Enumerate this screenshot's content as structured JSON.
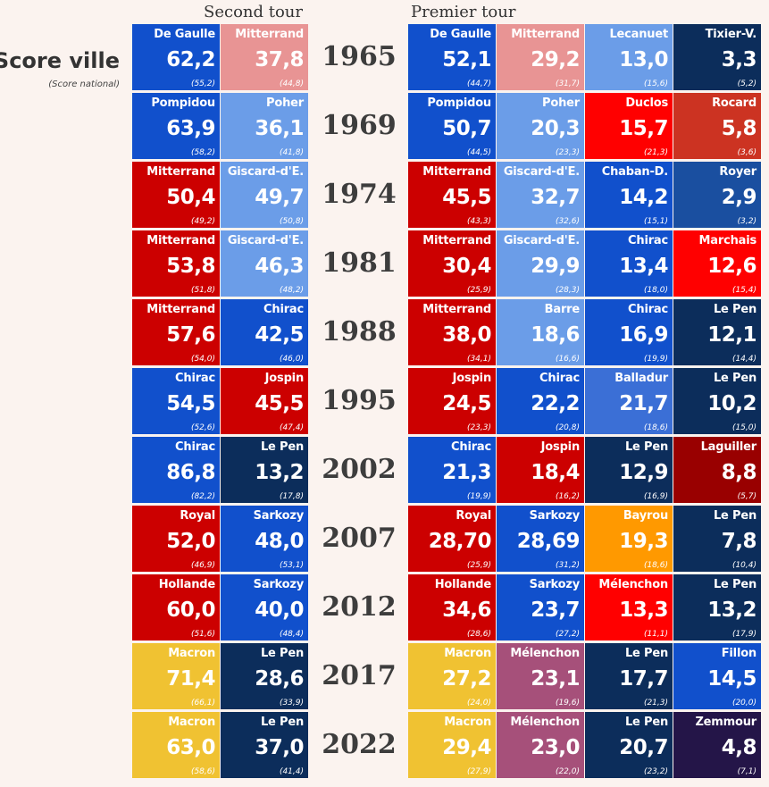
{
  "headers": {
    "second": "Second tour",
    "first": "Premier tour"
  },
  "legend": {
    "title": "Score ville",
    "subtitle": "(Score national)"
  },
  "colors": {
    "degaulle": "#1150cc",
    "pompidou": "#1150cc",
    "chirac": "#1150cc",
    "sarkozy": "#1150cc",
    "fillon": "#1150cc",
    "balladur": "#3b6fd6",
    "poher": "#6b9de8",
    "giscard": "#6b9de8",
    "lecanuet": "#6b9de8",
    "barre": "#6b9de8",
    "mitterrand_left": "#e89494",
    "socialist": "#cc0000",
    "communist": "#ff0000",
    "rocard": "#cc3322",
    "laguiller": "#990000",
    "tixier": "#0c2d5b",
    "lepen": "#0c2d5b",
    "chaband": "#1150cc",
    "royer": "#1a4fa0",
    "bayrou": "#ff9900",
    "macron": "#f0c232",
    "melenchon": "#a6507a",
    "zemmour": "#241548"
  },
  "chart_data": {
    "type": "table",
    "title": "Score ville",
    "subtitle": "(Score national)",
    "column_groups": [
      "Second tour",
      "Premier tour"
    ],
    "rows": [
      {
        "year": "1965",
        "second": [
          {
            "name": "De Gaulle",
            "score": "62,2",
            "national": "(55,2)",
            "color": "#1150cc"
          },
          {
            "name": "Mitterrand",
            "score": "37,8",
            "national": "(44,8)",
            "color": "#e89494"
          }
        ],
        "first": [
          {
            "name": "De Gaulle",
            "score": "52,1",
            "national": "(44,7)",
            "color": "#1150cc"
          },
          {
            "name": "Mitterrand",
            "score": "29,2",
            "national": "(31,7)",
            "color": "#e89494"
          },
          {
            "name": "Lecanuet",
            "score": "13,0",
            "national": "(15,6)",
            "color": "#6b9de8"
          },
          {
            "name": "Tixier-V.",
            "score": "3,3",
            "national": "(5,2)",
            "color": "#0c2d5b"
          }
        ]
      },
      {
        "year": "1969",
        "second": [
          {
            "name": "Pompidou",
            "score": "63,9",
            "national": "(58,2)",
            "color": "#1150cc"
          },
          {
            "name": "Poher",
            "score": "36,1",
            "national": "(41,8)",
            "color": "#6b9de8"
          }
        ],
        "first": [
          {
            "name": "Pompidou",
            "score": "50,7",
            "national": "(44,5)",
            "color": "#1150cc"
          },
          {
            "name": "Poher",
            "score": "20,3",
            "national": "(23,3)",
            "color": "#6b9de8"
          },
          {
            "name": "Duclos",
            "score": "15,7",
            "national": "(21,3)",
            "color": "#ff0000"
          },
          {
            "name": "Rocard",
            "score": "5,8",
            "national": "(3,6)",
            "color": "#cc3322"
          }
        ]
      },
      {
        "year": "1974",
        "second": [
          {
            "name": "Mitterrand",
            "score": "50,4",
            "national": "(49,2)",
            "color": "#cc0000"
          },
          {
            "name": "Giscard-d'E.",
            "score": "49,7",
            "national": "(50,8)",
            "color": "#6b9de8"
          }
        ],
        "first": [
          {
            "name": "Mitterrand",
            "score": "45,5",
            "national": "(43,3)",
            "color": "#cc0000"
          },
          {
            "name": "Giscard-d'E.",
            "score": "32,7",
            "national": "(32,6)",
            "color": "#6b9de8"
          },
          {
            "name": "Chaban-D.",
            "score": "14,2",
            "national": "(15,1)",
            "color": "#1150cc"
          },
          {
            "name": "Royer",
            "score": "2,9",
            "national": "(3,2)",
            "color": "#1a4fa0"
          }
        ]
      },
      {
        "year": "1981",
        "second": [
          {
            "name": "Mitterrand",
            "score": "53,8",
            "national": "(51,8)",
            "color": "#cc0000"
          },
          {
            "name": "Giscard-d'E.",
            "score": "46,3",
            "national": "(48,2)",
            "color": "#6b9de8"
          }
        ],
        "first": [
          {
            "name": "Mitterrand",
            "score": "30,4",
            "national": "(25,9)",
            "color": "#cc0000"
          },
          {
            "name": "Giscard-d'E.",
            "score": "29,9",
            "national": "(28,3)",
            "color": "#6b9de8"
          },
          {
            "name": "Chirac",
            "score": "13,4",
            "national": "(18,0)",
            "color": "#1150cc"
          },
          {
            "name": "Marchais",
            "score": "12,6",
            "national": "(15,4)",
            "color": "#ff0000"
          }
        ]
      },
      {
        "year": "1988",
        "second": [
          {
            "name": "Mitterrand",
            "score": "57,6",
            "national": "(54,0)",
            "color": "#cc0000"
          },
          {
            "name": "Chirac",
            "score": "42,5",
            "national": "(46,0)",
            "color": "#1150cc"
          }
        ],
        "first": [
          {
            "name": "Mitterrand",
            "score": "38,0",
            "national": "(34,1)",
            "color": "#cc0000"
          },
          {
            "name": "Barre",
            "score": "18,6",
            "national": "(16,6)",
            "color": "#6b9de8"
          },
          {
            "name": "Chirac",
            "score": "16,9",
            "national": "(19,9)",
            "color": "#1150cc"
          },
          {
            "name": "Le Pen",
            "score": "12,1",
            "national": "(14,4)",
            "color": "#0c2d5b"
          }
        ]
      },
      {
        "year": "1995",
        "second": [
          {
            "name": "Chirac",
            "score": "54,5",
            "national": "(52,6)",
            "color": "#1150cc"
          },
          {
            "name": "Jospin",
            "score": "45,5",
            "national": "(47,4)",
            "color": "#cc0000"
          }
        ],
        "first": [
          {
            "name": "Jospin",
            "score": "24,5",
            "national": "(23,3)",
            "color": "#cc0000"
          },
          {
            "name": "Chirac",
            "score": "22,2",
            "national": "(20,8)",
            "color": "#1150cc"
          },
          {
            "name": "Balladur",
            "score": "21,7",
            "national": "(18,6)",
            "color": "#3b6fd6"
          },
          {
            "name": "Le Pen",
            "score": "10,2",
            "national": "(15,0)",
            "color": "#0c2d5b"
          }
        ]
      },
      {
        "year": "2002",
        "second": [
          {
            "name": "Chirac",
            "score": "86,8",
            "national": "(82,2)",
            "color": "#1150cc"
          },
          {
            "name": "Le Pen",
            "score": "13,2",
            "national": "(17,8)",
            "color": "#0c2d5b"
          }
        ],
        "first": [
          {
            "name": "Chirac",
            "score": "21,3",
            "national": "(19,9)",
            "color": "#1150cc"
          },
          {
            "name": "Jospin",
            "score": "18,4",
            "national": "(16,2)",
            "color": "#cc0000"
          },
          {
            "name": "Le Pen",
            "score": "12,9",
            "national": "(16,9)",
            "color": "#0c2d5b"
          },
          {
            "name": "Laguiller",
            "score": "8,8",
            "national": "(5,7)",
            "color": "#990000"
          }
        ]
      },
      {
        "year": "2007",
        "second": [
          {
            "name": "Royal",
            "score": "52,0",
            "national": "(46,9)",
            "color": "#cc0000"
          },
          {
            "name": "Sarkozy",
            "score": "48,0",
            "national": "(53,1)",
            "color": "#1150cc"
          }
        ],
        "first": [
          {
            "name": "Royal",
            "score": "28,70",
            "national": "(25,9)",
            "color": "#cc0000"
          },
          {
            "name": "Sarkozy",
            "score": "28,69",
            "national": "(31,2)",
            "color": "#1150cc"
          },
          {
            "name": "Bayrou",
            "score": "19,3",
            "national": "(18,6)",
            "color": "#ff9900"
          },
          {
            "name": "Le Pen",
            "score": "7,8",
            "national": "(10,4)",
            "color": "#0c2d5b"
          }
        ]
      },
      {
        "year": "2012",
        "second": [
          {
            "name": "Hollande",
            "score": "60,0",
            "national": "(51,6)",
            "color": "#cc0000"
          },
          {
            "name": "Sarkozy",
            "score": "40,0",
            "national": "(48,4)",
            "color": "#1150cc"
          }
        ],
        "first": [
          {
            "name": "Hollande",
            "score": "34,6",
            "national": "(28,6)",
            "color": "#cc0000"
          },
          {
            "name": "Sarkozy",
            "score": "23,7",
            "national": "(27,2)",
            "color": "#1150cc"
          },
          {
            "name": "Mélenchon",
            "score": "13,3",
            "national": "(11,1)",
            "color": "#ff0000"
          },
          {
            "name": "Le Pen",
            "score": "13,2",
            "national": "(17,9)",
            "color": "#0c2d5b"
          }
        ]
      },
      {
        "year": "2017",
        "second": [
          {
            "name": "Macron",
            "score": "71,4",
            "national": "(66,1)",
            "color": "#f0c232"
          },
          {
            "name": "Le Pen",
            "score": "28,6",
            "national": "(33,9)",
            "color": "#0c2d5b"
          }
        ],
        "first": [
          {
            "name": "Macron",
            "score": "27,2",
            "national": "(24,0)",
            "color": "#f0c232"
          },
          {
            "name": "Mélenchon",
            "score": "23,1",
            "national": "(19,6)",
            "color": "#a6507a"
          },
          {
            "name": "Le Pen",
            "score": "17,7",
            "national": "(21,3)",
            "color": "#0c2d5b"
          },
          {
            "name": "Fillon",
            "score": "14,5",
            "national": "(20,0)",
            "color": "#1150cc"
          }
        ]
      },
      {
        "year": "2022",
        "second": [
          {
            "name": "Macron",
            "score": "63,0",
            "national": "(58,6)",
            "color": "#f0c232"
          },
          {
            "name": "Le Pen",
            "score": "37,0",
            "national": "(41,4)",
            "color": "#0c2d5b"
          }
        ],
        "first": [
          {
            "name": "Macron",
            "score": "29,4",
            "national": "(27,9)",
            "color": "#f0c232"
          },
          {
            "name": "Mélenchon",
            "score": "23,0",
            "national": "(22,0)",
            "color": "#a6507a"
          },
          {
            "name": "Le Pen",
            "score": "20,7",
            "national": "(23,2)",
            "color": "#0c2d5b"
          },
          {
            "name": "Zemmour",
            "score": "4,8",
            "national": "(7,1)",
            "color": "#241548"
          }
        ]
      }
    ]
  }
}
